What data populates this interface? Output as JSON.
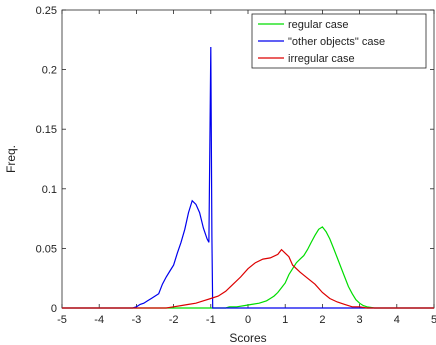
{
  "chart_data": {
    "type": "line",
    "title": "",
    "xlabel": "Scores",
    "ylabel": "Freq.",
    "xlim": [
      -5,
      5
    ],
    "ylim": [
      0,
      0.25
    ],
    "xticks": [
      -5,
      -4,
      -3,
      -2,
      -1,
      0,
      1,
      2,
      3,
      4,
      5
    ],
    "yticks": [
      0,
      0.05,
      0.1,
      0.15,
      0.2,
      0.25
    ],
    "xtick_labels": [
      "-5",
      "-4",
      "-3",
      "-2",
      "-1",
      "0",
      "1",
      "2",
      "3",
      "4",
      "5"
    ],
    "ytick_labels": [
      "0",
      "0.05",
      "0.1",
      "0.15",
      "0.2",
      "0.25"
    ],
    "grid": false,
    "legend_position": "top-right",
    "series": [
      {
        "name": "regular case",
        "color": "#00dd00",
        "x": [
          -5,
          -0.6,
          -0.5,
          -0.3,
          -0.1,
          0.1,
          0.3,
          0.5,
          0.6,
          0.7,
          0.8,
          0.9,
          1.0,
          1.1,
          1.2,
          1.3,
          1.4,
          1.5,
          1.6,
          1.7,
          1.8,
          1.9,
          2.0,
          2.1,
          2.2,
          2.3,
          2.4,
          2.5,
          2.6,
          2.7,
          2.8,
          2.9,
          3.0,
          3.1,
          3.2,
          3.4,
          5
        ],
        "y": [
          0,
          0,
          0.001,
          0.001,
          0.002,
          0.003,
          0.004,
          0.006,
          0.008,
          0.01,
          0.013,
          0.017,
          0.021,
          0.028,
          0.033,
          0.038,
          0.041,
          0.044,
          0.049,
          0.055,
          0.061,
          0.066,
          0.068,
          0.064,
          0.058,
          0.05,
          0.042,
          0.034,
          0.026,
          0.018,
          0.012,
          0.007,
          0.004,
          0.002,
          0.001,
          0,
          0
        ]
      },
      {
        "name": "\"other objects\" case",
        "color": "#0000ee",
        "x": [
          -5,
          -3.1,
          -3.0,
          -2.9,
          -2.8,
          -2.7,
          -2.6,
          -2.5,
          -2.4,
          -2.3,
          -2.2,
          -2.1,
          -2.0,
          -1.9,
          -1.8,
          -1.7,
          -1.6,
          -1.5,
          -1.4,
          -1.3,
          -1.2,
          -1.1,
          -1.05,
          -1.0,
          -0.97,
          -0.95,
          5
        ],
        "y": [
          0,
          0,
          0.001,
          0.003,
          0.004,
          0.006,
          0.008,
          0.01,
          0.012,
          0.02,
          0.026,
          0.031,
          0.036,
          0.046,
          0.055,
          0.066,
          0.08,
          0.09,
          0.087,
          0.08,
          0.067,
          0.058,
          0.055,
          0.219,
          0.06,
          0,
          0
        ]
      },
      {
        "name": "irregular case",
        "color": "#dd0000",
        "x": [
          -5,
          -2.2,
          -2.0,
          -1.8,
          -1.6,
          -1.4,
          -1.2,
          -1.0,
          -0.8,
          -0.6,
          -0.4,
          -0.2,
          0,
          0.2,
          0.4,
          0.6,
          0.8,
          0.9,
          1.0,
          1.1,
          1.2,
          1.4,
          1.6,
          1.8,
          2.0,
          2.2,
          2.4,
          2.6,
          2.8,
          3.0,
          3.2,
          5
        ],
        "y": [
          0,
          0,
          0.001,
          0.002,
          0.003,
          0.004,
          0.006,
          0.008,
          0.01,
          0.014,
          0.02,
          0.026,
          0.033,
          0.038,
          0.041,
          0.042,
          0.045,
          0.049,
          0.046,
          0.043,
          0.036,
          0.03,
          0.025,
          0.02,
          0.013,
          0.008,
          0.005,
          0.003,
          0.001,
          0.001,
          0,
          0
        ]
      }
    ]
  }
}
